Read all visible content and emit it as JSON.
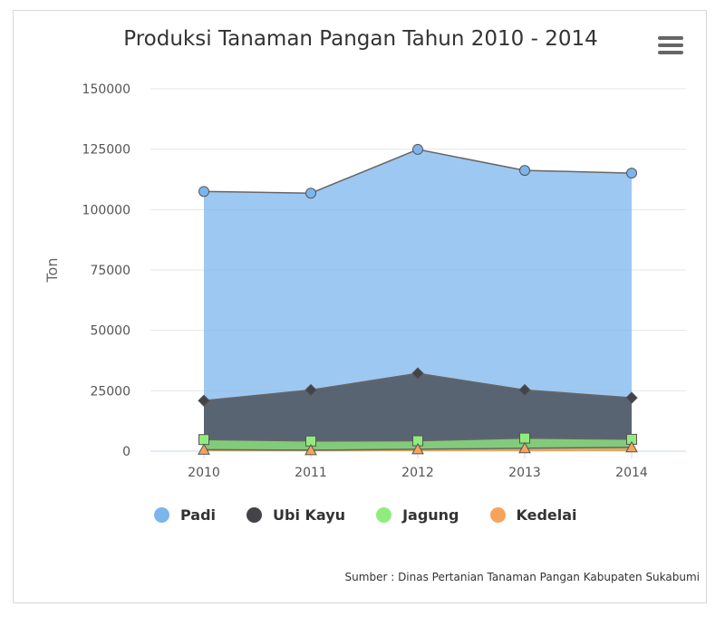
{
  "chart_data": {
    "type": "area",
    "title": "Produksi Tanaman Pangan Tahun 2010 - 2014",
    "xlabel": "",
    "ylabel": "Ton",
    "categories": [
      "2010",
      "2011",
      "2012",
      "2013",
      "2014"
    ],
    "ylim": [
      0,
      150000
    ],
    "yticks": [
      "0",
      "25000",
      "50000",
      "75000",
      "100000",
      "125000",
      "150000"
    ],
    "stacked": false,
    "grid": true,
    "legend_position": "bottom",
    "series": [
      {
        "name": "Padi",
        "values": [
          107500,
          106800,
          124900,
          116200,
          115100
        ],
        "color": "#7cb5ec",
        "marker": "circle"
      },
      {
        "name": "Ubi Kayu",
        "values": [
          20900,
          25300,
          32200,
          25300,
          22100
        ],
        "color": "#434348",
        "marker": "diamond"
      },
      {
        "name": "Jagung",
        "values": [
          4800,
          4200,
          4300,
          5400,
          4900
        ],
        "color": "#90ed7d",
        "marker": "square"
      },
      {
        "name": "Kedelai",
        "values": [
          600,
          400,
          800,
          1200,
          1600
        ],
        "color": "#f7a35c",
        "marker": "triangle"
      }
    ]
  },
  "menu": {
    "icon": "hamburger-menu-icon"
  },
  "source_note": "Sumber : Dinas Pertanian Tanaman Pangan Kabupaten Sukabumi"
}
